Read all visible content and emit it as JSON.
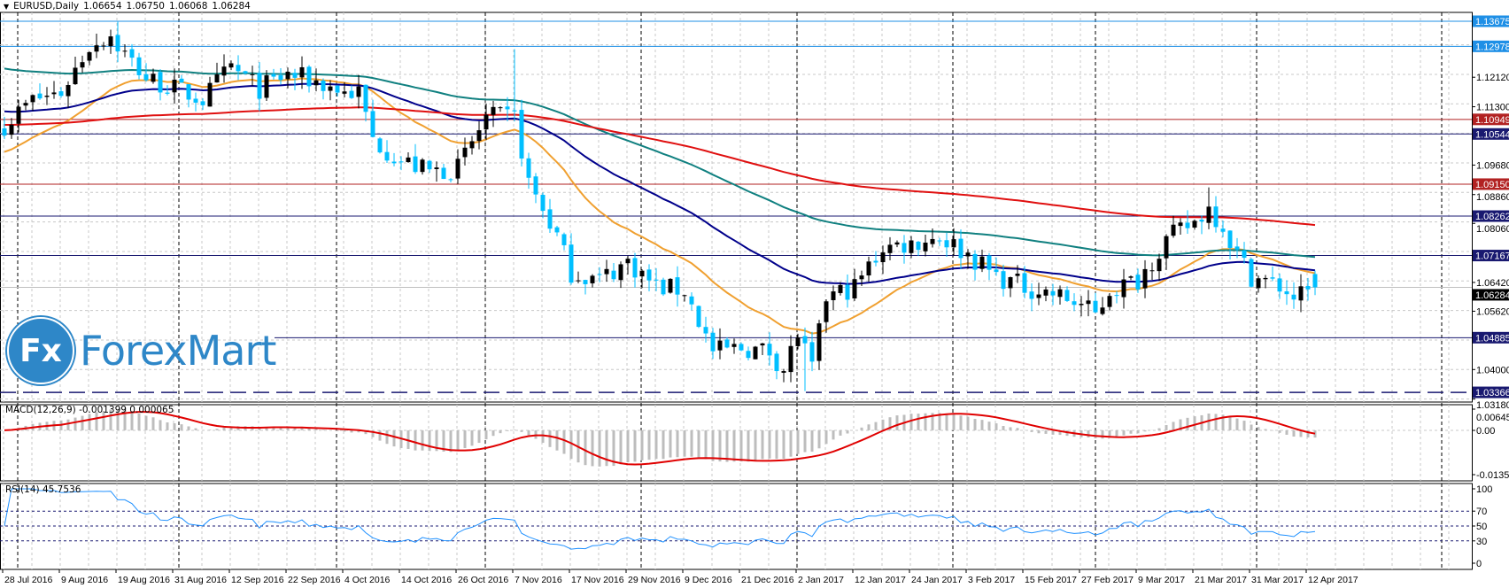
{
  "header": {
    "symbol": "EURUSD,Daily",
    "open": "1.06654",
    "high": "1.06750",
    "low": "1.06068",
    "close": "1.06284"
  },
  "macd": {
    "label": "MACD(12,26,9) -0.001399 0.000065",
    "axis": [
      "0.006457",
      "0.00",
      "-0.01352"
    ]
  },
  "rsi": {
    "label": "RSI(14) 45.7536",
    "axis": [
      "100",
      "70",
      "50",
      "30",
      "0"
    ]
  },
  "price_axis": [
    "1.12120",
    "1.11300",
    "1.09680",
    "1.08860",
    "1.08060",
    "1.06420",
    "1.05620",
    "1.04000",
    "1.03180"
  ],
  "levels": [
    {
      "price": "1.13675",
      "color": "#1e8fe6",
      "style": "solid"
    },
    {
      "price": "1.12978",
      "color": "#1e8fe6",
      "style": "solid"
    },
    {
      "price": "1.10949",
      "color": "#b22222",
      "style": "solid"
    },
    {
      "price": "1.10544",
      "color": "#191970",
      "style": "solid"
    },
    {
      "price": "1.09150",
      "color": "#b22222",
      "style": "solid"
    },
    {
      "price": "1.08262",
      "color": "#191970",
      "style": "solid"
    },
    {
      "price": "1.07167",
      "color": "#191970",
      "style": "solid"
    },
    {
      "price": "1.04885",
      "color": "#191970",
      "style": "solid",
      "from_date": "29 Aug 2016"
    },
    {
      "price": "1.03366",
      "color": "#191970",
      "style": "dashed"
    },
    {
      "price": "1.06284",
      "color": "#000000",
      "style": "bid"
    }
  ],
  "logo": {
    "badge": "Fx",
    "text": "ForexMart"
  },
  "chart_data": {
    "type": "candlestick",
    "title": "EURUSD,Daily",
    "ylim": [
      1.0318,
      1.1376
    ],
    "bars_per_label": 8,
    "dates": [
      "28 Jul 2016",
      "9 Aug 2016",
      "19 Aug 2016",
      "31 Aug 2016",
      "12 Sep 2016",
      "22 Sep 2016",
      "4 Oct 2016",
      "14 Oct 2016",
      "26 Oct 2016",
      "7 Nov 2016",
      "17 Nov 2016",
      "29 Nov 2016",
      "9 Dec 2016",
      "21 Dec 2016",
      "2 Jan 2017",
      "12 Jan 2017",
      "24 Jan 2017",
      "3 Feb 2017",
      "15 Feb 2017",
      "27 Feb 2017",
      "9 Mar 2017",
      "21 Mar 2017",
      "31 Mar 2017",
      "12 Apr 2017"
    ],
    "close_keypoints": [
      [
        0,
        1.108
      ],
      [
        4,
        1.115
      ],
      [
        8,
        1.117
      ],
      [
        12,
        1.13
      ],
      [
        15,
        1.133
      ],
      [
        16,
        1.13
      ],
      [
        20,
        1.121
      ],
      [
        24,
        1.118
      ],
      [
        28,
        1.115
      ],
      [
        32,
        1.124
      ],
      [
        36,
        1.118
      ],
      [
        40,
        1.122
      ],
      [
        44,
        1.12
      ],
      [
        48,
        1.117
      ],
      [
        50,
        1.117
      ],
      [
        52,
        1.104
      ],
      [
        56,
        1.098
      ],
      [
        60,
        1.095
      ],
      [
        64,
        1.096
      ],
      [
        68,
        1.11
      ],
      [
        72,
        1.11
      ],
      [
        74,
        1.092
      ],
      [
        78,
        1.077
      ],
      [
        80,
        1.067
      ],
      [
        84,
        1.065
      ],
      [
        88,
        1.07
      ],
      [
        92,
        1.063
      ],
      [
        96,
        1.062
      ],
      [
        100,
        1.045
      ],
      [
        104,
        1.046
      ],
      [
        108,
        1.045
      ],
      [
        110,
        1.04
      ],
      [
        112,
        1.05
      ],
      [
        114,
        1.04
      ],
      [
        116,
        1.06
      ],
      [
        120,
        1.063
      ],
      [
        124,
        1.074
      ],
      [
        128,
        1.075
      ],
      [
        132,
        1.077
      ],
      [
        136,
        1.072
      ],
      [
        140,
        1.066
      ],
      [
        144,
        1.063
      ],
      [
        148,
        1.061
      ],
      [
        152,
        1.058
      ],
      [
        154,
        1.055
      ],
      [
        156,
        1.062
      ],
      [
        160,
        1.065
      ],
      [
        164,
        1.076
      ],
      [
        168,
        1.081
      ],
      [
        170,
        1.085
      ],
      [
        172,
        1.08
      ],
      [
        174,
        1.072
      ],
      [
        176,
        1.066
      ],
      [
        180,
        1.063
      ],
      [
        182,
        1.06
      ],
      [
        184,
        1.061
      ],
      [
        185,
        1.06284
      ]
    ],
    "extremes": [
      {
        "bar": 16,
        "high": 1.1366
      },
      {
        "bar": 72,
        "high": 1.129
      },
      {
        "bar": 113,
        "low": 1.034
      },
      {
        "bar": 170,
        "high": 1.0906
      }
    ],
    "moving_averages": [
      {
        "name": "MA fast",
        "period": 21,
        "seed": 1.1,
        "color": "#f0a030"
      },
      {
        "name": "MA 50",
        "period": 50,
        "seed": 1.112,
        "color": "#00008b"
      },
      {
        "name": "MA 100",
        "period": 100,
        "seed": 1.124,
        "color": "#108080"
      },
      {
        "name": "MA 200",
        "period": 200,
        "seed": 1.108,
        "color": "#e01010"
      }
    ],
    "macd_range": [
      -0.01352,
      0.006457
    ],
    "rsi_levels": [
      70,
      50,
      30
    ]
  }
}
